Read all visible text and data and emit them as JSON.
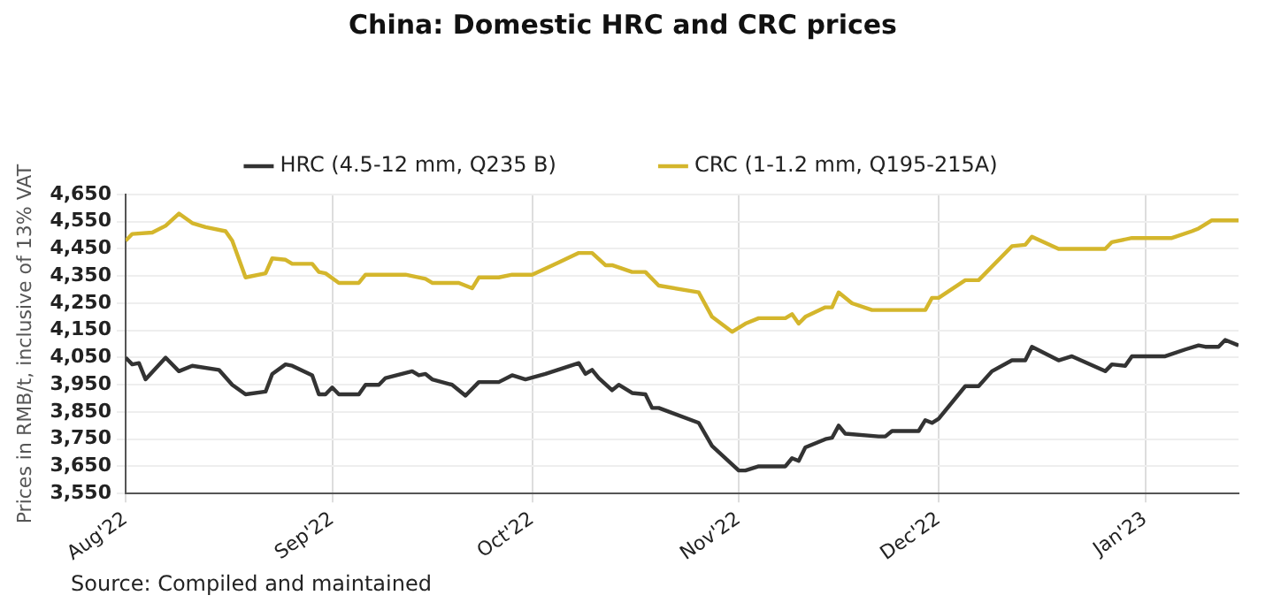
{
  "chart_data": {
    "type": "line",
    "title": "China: Domestic HRC and CRC prices",
    "ylabel": "Prices in RMB/t, inclusive of 13% VAT",
    "annotations": [
      "Source: Compiled and maintained"
    ],
    "xlim": [
      "2022-08-01",
      "2023-01-15"
    ],
    "xticks": [
      {
        "value": "2022-08-01",
        "label": "Aug'22"
      },
      {
        "value": "2022-09-01",
        "label": "Sep'22"
      },
      {
        "value": "2022-10-01",
        "label": "Oct'22"
      },
      {
        "value": "2022-11-01",
        "label": "Nov'22"
      },
      {
        "value": "2022-12-01",
        "label": "Dec'22"
      },
      {
        "value": "2023-01-01",
        "label": "Jan'23"
      }
    ],
    "ylim": [
      3550,
      4650
    ],
    "yticks": [
      {
        "value": 3550,
        "label": "3,550"
      },
      {
        "value": 3650,
        "label": "3,650"
      },
      {
        "value": 3750,
        "label": "3,750"
      },
      {
        "value": 3850,
        "label": "3,850"
      },
      {
        "value": 3950,
        "label": "3,950"
      },
      {
        "value": 4050,
        "label": "4,050"
      },
      {
        "value": 4150,
        "label": "4,150"
      },
      {
        "value": 4250,
        "label": "4,250"
      },
      {
        "value": 4350,
        "label": "4,350"
      },
      {
        "value": 4450,
        "label": "4,450"
      },
      {
        "value": 4550,
        "label": "4,550"
      },
      {
        "value": 4650,
        "label": "4,650"
      }
    ],
    "grid": true,
    "legend": "top",
    "marker": "none",
    "line_style": "solid",
    "series": [
      {
        "name": "HRC (4.5-12 mm, Q235 B)",
        "color": "#333333",
        "x": [
          "2022-08-01",
          "2022-08-02",
          "2022-08-03",
          "2022-08-04",
          "2022-08-07",
          "2022-08-09",
          "2022-08-11",
          "2022-08-15",
          "2022-08-17",
          "2022-08-19",
          "2022-08-22",
          "2022-08-23",
          "2022-08-25",
          "2022-08-26",
          "2022-08-29",
          "2022-08-30",
          "2022-08-31",
          "2022-09-01",
          "2022-09-02",
          "2022-09-05",
          "2022-09-06",
          "2022-09-08",
          "2022-09-09",
          "2022-09-13",
          "2022-09-14",
          "2022-09-15",
          "2022-09-16",
          "2022-09-19",
          "2022-09-21",
          "2022-09-23",
          "2022-09-26",
          "2022-09-28",
          "2022-09-30",
          "2022-10-03",
          "2022-10-08",
          "2022-10-09",
          "2022-10-10",
          "2022-10-11",
          "2022-10-13",
          "2022-10-14",
          "2022-10-16",
          "2022-10-18",
          "2022-10-19",
          "2022-10-20",
          "2022-10-26",
          "2022-10-28",
          "2022-11-01",
          "2022-11-02",
          "2022-11-04",
          "2022-11-08",
          "2022-11-09",
          "2022-11-10",
          "2022-11-11",
          "2022-11-14",
          "2022-11-15",
          "2022-11-16",
          "2022-11-17",
          "2022-11-22",
          "2022-11-23",
          "2022-11-24",
          "2022-11-28",
          "2022-11-29",
          "2022-11-30",
          "2022-12-01",
          "2022-12-05",
          "2022-12-07",
          "2022-12-09",
          "2022-12-12",
          "2022-12-14",
          "2022-12-15",
          "2022-12-19",
          "2022-12-21",
          "2022-12-26",
          "2022-12-27",
          "2022-12-29",
          "2022-12-30",
          "2023-01-04",
          "2023-01-07",
          "2023-01-09",
          "2023-01-10",
          "2023-01-12",
          "2023-01-13",
          "2023-01-15"
        ],
        "values": [
          4050,
          4025,
          4030,
          3970,
          4050,
          4000,
          4020,
          4005,
          3950,
          3915,
          3925,
          3990,
          4025,
          4020,
          3985,
          3915,
          3915,
          3940,
          3915,
          3915,
          3950,
          3950,
          3975,
          4000,
          3985,
          3990,
          3970,
          3950,
          3910,
          3960,
          3960,
          3985,
          3970,
          3990,
          4030,
          3990,
          4005,
          3975,
          3930,
          3950,
          3920,
          3915,
          3865,
          3865,
          3810,
          3725,
          3635,
          3635,
          3650,
          3650,
          3680,
          3670,
          3720,
          3750,
          3755,
          3800,
          3770,
          3760,
          3760,
          3780,
          3780,
          3820,
          3810,
          3825,
          3945,
          3945,
          4000,
          4040,
          4040,
          4090,
          4040,
          4055,
          4000,
          4025,
          4020,
          4055,
          4055,
          4080,
          4095,
          4090,
          4090,
          4115,
          4095
        ]
      },
      {
        "name": "CRC (1-1.2 mm, Q195-215A)",
        "color": "#d4b62c",
        "x": [
          "2022-08-01",
          "2022-08-02",
          "2022-08-05",
          "2022-08-07",
          "2022-08-09",
          "2022-08-11",
          "2022-08-13",
          "2022-08-16",
          "2022-08-17",
          "2022-08-19",
          "2022-08-22",
          "2022-08-23",
          "2022-08-25",
          "2022-08-26",
          "2022-08-29",
          "2022-08-30",
          "2022-08-31",
          "2022-09-02",
          "2022-09-05",
          "2022-09-06",
          "2022-09-12",
          "2022-09-15",
          "2022-09-16",
          "2022-09-20",
          "2022-09-22",
          "2022-09-23",
          "2022-09-26",
          "2022-09-28",
          "2022-10-01",
          "2022-10-05",
          "2022-10-08",
          "2022-10-10",
          "2022-10-12",
          "2022-10-13",
          "2022-10-16",
          "2022-10-18",
          "2022-10-20",
          "2022-10-26",
          "2022-10-28",
          "2022-10-31",
          "2022-11-02",
          "2022-11-04",
          "2022-11-08",
          "2022-11-09",
          "2022-11-10",
          "2022-11-11",
          "2022-11-14",
          "2022-11-15",
          "2022-11-16",
          "2022-11-18",
          "2022-11-21",
          "2022-11-29",
          "2022-11-30",
          "2022-12-01",
          "2022-12-05",
          "2022-12-07",
          "2022-12-12",
          "2022-12-14",
          "2022-12-15",
          "2022-12-19",
          "2022-12-26",
          "2022-12-27",
          "2022-12-30",
          "2023-01-05",
          "2023-01-08",
          "2023-01-09",
          "2023-01-11",
          "2023-01-15"
        ],
        "values": [
          4480,
          4505,
          4510,
          4535,
          4580,
          4545,
          4530,
          4515,
          4480,
          4345,
          4360,
          4415,
          4410,
          4395,
          4395,
          4365,
          4360,
          4325,
          4325,
          4355,
          4355,
          4340,
          4325,
          4325,
          4305,
          4345,
          4345,
          4355,
          4355,
          4400,
          4435,
          4435,
          4390,
          4390,
          4365,
          4365,
          4315,
          4290,
          4200,
          4145,
          4175,
          4195,
          4195,
          4210,
          4175,
          4200,
          4235,
          4235,
          4290,
          4250,
          4225,
          4225,
          4270,
          4270,
          4335,
          4335,
          4460,
          4465,
          4495,
          4450,
          4450,
          4475,
          4490,
          4490,
          4515,
          4525,
          4555,
          4555
        ]
      }
    ]
  }
}
